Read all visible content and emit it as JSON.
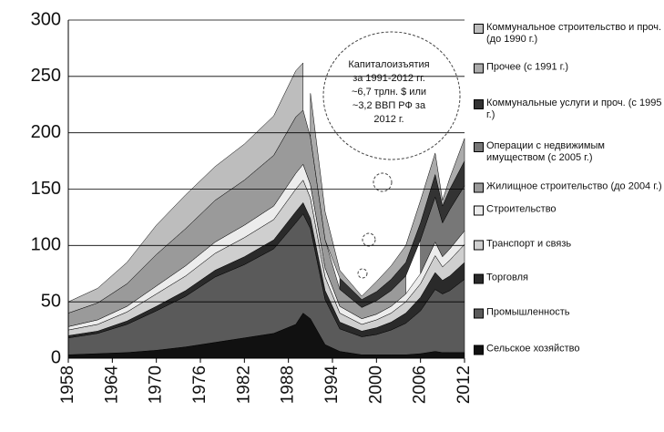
{
  "chart_data": {
    "type": "stacked_area",
    "x": [
      1958,
      1962,
      1966,
      1970,
      1974,
      1978,
      1982,
      1986,
      1989,
      1990,
      1991,
      1993,
      1995,
      1998,
      2000,
      2002,
      2004,
      2006,
      2008,
      2009,
      2010,
      2012
    ],
    "xlim": [
      1958,
      2012
    ],
    "xticks": [
      1958,
      1964,
      1970,
      1976,
      1982,
      1988,
      1994,
      2000,
      2006,
      2012
    ],
    "ylim": [
      0,
      300
    ],
    "yticks": [
      0,
      50,
      100,
      150,
      200,
      250,
      300
    ],
    "grid": true,
    "legend": "right",
    "annotation": [
      "Капиталоизъятия",
      "за 1991-2012 гг.",
      "~6,7 трлн. $ или",
      "~3,2 ВВП РФ за",
      "2012 г."
    ],
    "series": [
      {
        "name": "Сельское хозяйство",
        "color": "#111111",
        "values": [
          3,
          4,
          5,
          7,
          10,
          14,
          18,
          22,
          30,
          40,
          35,
          12,
          6,
          3,
          3,
          3,
          3,
          4,
          6,
          5,
          5,
          5
        ]
      },
      {
        "name": "Промышленность",
        "color": "#5a5a5a",
        "values": [
          15,
          18,
          25,
          35,
          45,
          58,
          65,
          75,
          90,
          88,
          80,
          40,
          20,
          16,
          18,
          22,
          28,
          38,
          55,
          52,
          55,
          65
        ]
      },
      {
        "name": "Торговля",
        "color": "#2a2a2a",
        "values": [
          2,
          2,
          3,
          4,
          5,
          6,
          7,
          8,
          10,
          10,
          9,
          8,
          6,
          5,
          6,
          7,
          9,
          12,
          15,
          12,
          13,
          15
        ]
      },
      {
        "name": "Транспорт и связь",
        "color": "#cfcfcf",
        "values": [
          5,
          6,
          8,
          11,
          13,
          15,
          17,
          18,
          20,
          20,
          18,
          12,
          8,
          6,
          7,
          8,
          10,
          12,
          15,
          12,
          14,
          16
        ]
      },
      {
        "name": "Строительство",
        "color": "#ececec",
        "values": [
          3,
          4,
          5,
          7,
          9,
          10,
          11,
          12,
          14,
          14,
          12,
          8,
          6,
          5,
          5,
          6,
          7,
          9,
          12,
          9,
          10,
          12
        ]
      },
      {
        "name": "Жилищное строительство (до 2004 г.)",
        "color": "#9a9a9a",
        "values": [
          12,
          15,
          20,
          28,
          33,
          37,
          40,
          45,
          50,
          48,
          42,
          25,
          15,
          10,
          12,
          14,
          16,
          null,
          null,
          null,
          null,
          null
        ]
      },
      {
        "name": "Операции с недвижимым имуществом (с 2005 г.)",
        "color": "#777777",
        "values": [
          null,
          null,
          null,
          null,
          null,
          null,
          null,
          null,
          null,
          null,
          null,
          null,
          null,
          null,
          null,
          null,
          null,
          30,
          40,
          30,
          35,
          40
        ]
      },
      {
        "name": "Коммунальные услуги и проч. (с 1995 г.)",
        "color": "#333333",
        "values": [
          null,
          null,
          null,
          null,
          null,
          null,
          null,
          null,
          null,
          null,
          null,
          null,
          10,
          7,
          8,
          10,
          12,
          15,
          20,
          15,
          18,
          22
        ]
      },
      {
        "name": "Прочее (с 1991 г.)",
        "color": "#ababab",
        "values": [
          null,
          null,
          null,
          null,
          null,
          null,
          null,
          null,
          null,
          null,
          39,
          25,
          7,
          3,
          9,
          12,
          15,
          20,
          19,
          5,
          10,
          20
        ]
      },
      {
        "name": "Коммунальное строительство и проч. (до 1990 г.)",
        "color": "#bdbdbd",
        "values": [
          10,
          13,
          19,
          26,
          30,
          30,
          32,
          35,
          41,
          42,
          null,
          null,
          null,
          null,
          null,
          null,
          null,
          null,
          null,
          null,
          null,
          null
        ]
      }
    ]
  }
}
